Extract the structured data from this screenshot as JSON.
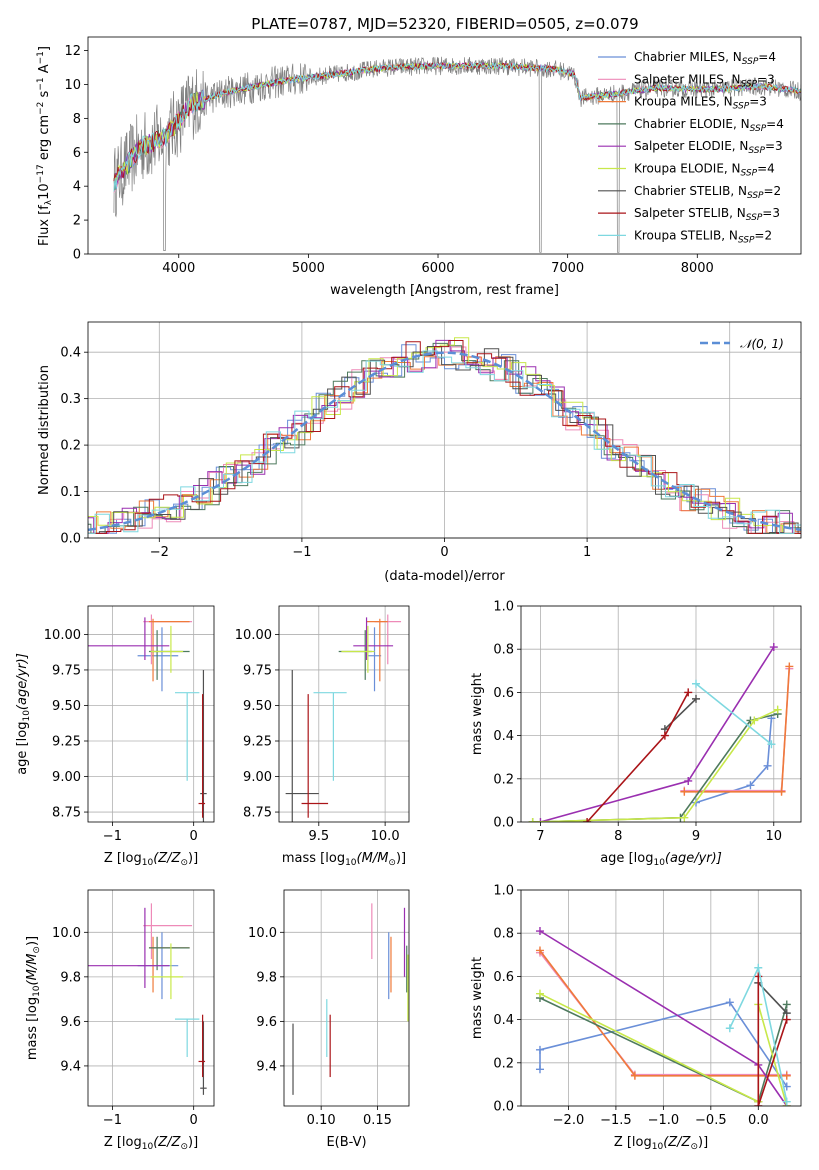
{
  "figure": {
    "title": "PLATE=0787, MJD=52320, FIBERID=0505, z=0.079"
  },
  "chart_data": [
    {
      "id": "spectrum",
      "type": "line",
      "title": "PLATE=0787, MJD=52320, FIBERID=0505, z=0.079",
      "xlabel": "wavelength [Angstrom, rest frame]",
      "ylabel_main": "Flux [f",
      "ylabel_sub": "λ",
      "ylabel_rest": "10",
      "ylabel_exp": "−17",
      "ylabel_tail": " erg cm",
      "ylabel_exp2": "−2",
      "ylabel_tail2": " s",
      "ylabel_exp3": "−1",
      "ylabel_tail3": " A",
      "ylabel_exp4": "−1",
      "ylabel_end": "]",
      "xlim": [
        3300,
        8800
      ],
      "ylim": [
        0,
        12.8
      ],
      "xticks": [
        4000,
        5000,
        6000,
        7000,
        8000
      ],
      "yticks": [
        0,
        2,
        4,
        6,
        8,
        10,
        12
      ],
      "grid": false,
      "legend_position": "top-right",
      "legend": [
        {
          "pre": "Chabrier MILES, N",
          "sub": "SSP",
          "post": "=4",
          "color": "#6a8fd8"
        },
        {
          "pre": "Salpeter MILES, N",
          "sub": "SSP",
          "post": "=3",
          "color": "#ee8ab8"
        },
        {
          "pre": "Kroupa MILES, N",
          "sub": "SSP",
          "post": "=3",
          "color": "#ef7a3a"
        },
        {
          "pre": "Chabrier ELODIE, N",
          "sub": "SSP",
          "post": "=4",
          "color": "#4e7a5e"
        },
        {
          "pre": "Salpeter ELODIE, N",
          "sub": "SSP",
          "post": "=3",
          "color": "#9a2fb0"
        },
        {
          "pre": "Kroupa ELODIE, N",
          "sub": "SSP",
          "post": "=4",
          "color": "#c8e84a"
        },
        {
          "pre": "Chabrier STELIB, N",
          "sub": "SSP",
          "post": "=2",
          "color": "#505050"
        },
        {
          "pre": "Salpeter STELIB, N",
          "sub": "SSP",
          "post": "=3",
          "color": "#aa1418"
        },
        {
          "pre": "Kroupa STELIB, N",
          "sub": "SSP",
          "post": "=2",
          "color": "#7ed8e0"
        }
      ],
      "data_color": "#808080",
      "continuum_knots": [
        [
          3500,
          4.2
        ],
        [
          3700,
          6.3
        ],
        [
          3900,
          6.9
        ],
        [
          4000,
          7.9
        ],
        [
          4100,
          8.9
        ],
        [
          4400,
          9.6
        ],
        [
          4800,
          10.2
        ],
        [
          5200,
          10.6
        ],
        [
          5600,
          11.0
        ],
        [
          6000,
          11.1
        ],
        [
          6500,
          11.1
        ],
        [
          6900,
          10.9
        ],
        [
          7050,
          10.6
        ],
        [
          7100,
          9.2
        ],
        [
          7400,
          9.5
        ],
        [
          7700,
          9.8
        ],
        [
          8100,
          9.7
        ],
        [
          8500,
          9.9
        ],
        [
          8800,
          9.6
        ]
      ]
    },
    {
      "id": "residuals",
      "type": "histogram",
      "xlabel": "(data-model)/error",
      "ylabel": "Normed distribution",
      "xlim": [
        -2.5,
        2.5
      ],
      "ylim": [
        0,
        0.465
      ],
      "xticks": [
        -2,
        -1,
        0,
        1,
        2
      ],
      "yticks": [
        0.0,
        0.1,
        0.2,
        0.3,
        0.4
      ],
      "grid": true,
      "legend_position": "top-right",
      "legend_label": "𝒩(0, 1)",
      "normal_color": "#5b8ed6",
      "bin_width": 0.1,
      "series": [
        {
          "color": "#6a8fd8",
          "offset": 0.0
        },
        {
          "color": "#ee8ab8",
          "offset": 0.05
        },
        {
          "color": "#ef7a3a",
          "offset": -0.04
        },
        {
          "color": "#4e7a5e",
          "offset": 0.02
        },
        {
          "color": "#9a2fb0",
          "offset": -0.06
        },
        {
          "color": "#c8e84a",
          "offset": 0.07
        },
        {
          "color": "#505050",
          "offset": -0.02
        },
        {
          "color": "#aa1418",
          "offset": 0.03
        },
        {
          "color": "#7ed8e0",
          "offset": -0.05
        }
      ]
    },
    {
      "id": "age_vs_Z",
      "type": "errorbar",
      "xlabel": "Z [log",
      "xlabel_sub": "10",
      "xlabel_rest": "(Z/Z",
      "xlabel_sub2": "⊙",
      "xlabel_end": ")]",
      "ylabel": "age  [log",
      "ylabel_sub": "10",
      "ylabel_rest": "(age/yr)]",
      "xlim": [
        -1.3,
        0.25
      ],
      "ylim": [
        8.68,
        10.2
      ],
      "xticks": [
        -1,
        0
      ],
      "yticks": [
        8.75,
        9.0,
        9.25,
        9.5,
        9.75,
        10.0
      ],
      "grid": true,
      "points": [
        {
          "color": "#6a8fd8",
          "x": -0.39,
          "y": 9.85,
          "xerr": [
            0.3,
            0.2
          ],
          "yerr": [
            0.25,
            0.2
          ]
        },
        {
          "color": "#ee8ab8",
          "x": -0.52,
          "y": 10.09,
          "xerr": [
            0.1,
            0.5
          ],
          "yerr": [
            0.3,
            0.05
          ]
        },
        {
          "color": "#ef7a3a",
          "x": -0.5,
          "y": 10.09,
          "xerr": [
            0.05,
            0.45
          ],
          "yerr": [
            0.42,
            0.02
          ]
        },
        {
          "color": "#4e7a5e",
          "x": -0.45,
          "y": 9.88,
          "xerr": [
            0.1,
            0.4
          ],
          "yerr": [
            0.2,
            0.15
          ]
        },
        {
          "color": "#9a2fb0",
          "x": -0.6,
          "y": 9.92,
          "xerr": [
            0.7,
            0.3
          ],
          "yerr": [
            0.1,
            0.2
          ]
        },
        {
          "color": "#c8e84a",
          "x": -0.28,
          "y": 9.88,
          "xerr": [
            0.25,
            0.15
          ],
          "yerr": [
            0.15,
            0.18
          ]
        },
        {
          "color": "#505050",
          "x": 0.12,
          "y": 8.88,
          "xerr": [
            0.04,
            0.04
          ],
          "yerr": [
            0.2,
            0.87
          ]
        },
        {
          "color": "#aa1418",
          "x": 0.11,
          "y": 8.81,
          "xerr": [
            0.05,
            0.03
          ],
          "yerr": [
            0.1,
            0.77
          ]
        },
        {
          "color": "#7ed8e0",
          "x": -0.08,
          "y": 9.59,
          "xerr": [
            0.15,
            0.15
          ],
          "yerr": [
            0.62,
            0.0
          ]
        }
      ]
    },
    {
      "id": "age_vs_mass",
      "type": "errorbar",
      "xlabel": "mass [log",
      "xlabel_sub": "10",
      "xlabel_rest": "(M/M",
      "xlabel_sub2": "⊙",
      "xlabel_end": ")]",
      "xlim": [
        9.2,
        10.18
      ],
      "ylim": [
        8.68,
        10.2
      ],
      "xticks": [
        9.5,
        10.0
      ],
      "yticks": [
        8.75,
        9.0,
        9.25,
        9.5,
        9.75,
        10.0
      ],
      "grid": true,
      "points": [
        {
          "color": "#6a8fd8",
          "x": 9.92,
          "y": 9.85,
          "xerr": [
            0.05,
            0.05
          ],
          "yerr": [
            0.25,
            0.2
          ]
        },
        {
          "color": "#ee8ab8",
          "x": 10.02,
          "y": 10.09,
          "xerr": [
            0.1,
            0.1
          ],
          "yerr": [
            0.3,
            0.05
          ]
        },
        {
          "color": "#ef7a3a",
          "x": 9.96,
          "y": 10.09,
          "xerr": [
            0.1,
            0.06
          ],
          "yerr": [
            0.42,
            0.02
          ]
        },
        {
          "color": "#4e7a5e",
          "x": 9.85,
          "y": 9.88,
          "xerr": [
            0.2,
            0.05
          ],
          "yerr": [
            0.2,
            0.15
          ]
        },
        {
          "color": "#9a2fb0",
          "x": 9.86,
          "y": 9.92,
          "xerr": [
            0.1,
            0.2
          ],
          "yerr": [
            0.1,
            0.2
          ]
        },
        {
          "color": "#c8e84a",
          "x": 9.87,
          "y": 9.88,
          "xerr": [
            0.2,
            0.05
          ],
          "yerr": [
            0.15,
            0.18
          ]
        },
        {
          "color": "#505050",
          "x": 9.3,
          "y": 8.88,
          "xerr": [
            0.05,
            0.2
          ],
          "yerr": [
            0.2,
            0.87
          ]
        },
        {
          "color": "#aa1418",
          "x": 9.42,
          "y": 8.81,
          "xerr": [
            0.05,
            0.15
          ],
          "yerr": [
            0.1,
            0.77
          ]
        },
        {
          "color": "#7ed8e0",
          "x": 9.61,
          "y": 9.59,
          "xerr": [
            0.15,
            0.1
          ],
          "yerr": [
            0.62,
            0.0
          ]
        }
      ]
    },
    {
      "id": "weight_vs_age",
      "type": "line",
      "xlabel": "age  [log",
      "xlabel_sub": "10",
      "xlabel_rest": "(age/yr)]",
      "ylabel": "mass weight",
      "xlim": [
        6.75,
        10.35
      ],
      "ylim": [
        0,
        1.0
      ],
      "xticks": [
        7,
        8,
        9,
        10
      ],
      "yticks": [
        0.0,
        0.2,
        0.4,
        0.6,
        0.8,
        1.0
      ],
      "grid": true,
      "series": [
        {
          "color": "#6a8fd8",
          "x": [
            9.0,
            9.7,
            9.92,
            9.97
          ],
          "y": [
            0.09,
            0.17,
            0.26,
            0.48
          ]
        },
        {
          "color": "#ee8ab8",
          "x": [
            8.85,
            10.1,
            10.2
          ],
          "y": [
            0.145,
            0.145,
            0.71
          ]
        },
        {
          "color": "#ef7a3a",
          "x": [
            8.85,
            10.1,
            10.2
          ],
          "y": [
            0.14,
            0.14,
            0.72
          ]
        },
        {
          "color": "#4e7a5e",
          "x": [
            6.9,
            8.8,
            9.7,
            10.05
          ],
          "y": [
            0.0,
            0.02,
            0.47,
            0.5
          ]
        },
        {
          "color": "#9a2fb0",
          "x": [
            7.0,
            8.9,
            10.0
          ],
          "y": [
            0.0,
            0.19,
            0.81
          ]
        },
        {
          "color": "#c8e84a",
          "x": [
            6.9,
            8.85,
            9.75,
            10.05
          ],
          "y": [
            0.0,
            0.02,
            0.47,
            0.52
          ]
        },
        {
          "color": "#505050",
          "x": [
            8.6,
            9.0
          ],
          "y": [
            0.43,
            0.57
          ]
        },
        {
          "color": "#aa1418",
          "x": [
            7.6,
            8.6,
            8.9
          ],
          "y": [
            0.0,
            0.4,
            0.6
          ]
        },
        {
          "color": "#7ed8e0",
          "x": [
            9.0,
            9.97
          ],
          "y": [
            0.64,
            0.36
          ]
        }
      ]
    },
    {
      "id": "mass_vs_Z",
      "type": "errorbar",
      "xlabel": "Z [log",
      "xlabel_sub": "10",
      "xlabel_rest": "(Z/Z",
      "xlabel_sub2": "⊙",
      "xlabel_end": ")]",
      "ylabel": "mass [log",
      "ylabel_sub": "10",
      "ylabel_rest": "(M/M",
      "ylabel_sub2": "⊙",
      "ylabel_end": ")]",
      "xlim": [
        -1.3,
        0.25
      ],
      "ylim": [
        9.22,
        10.19
      ],
      "xticks": [
        -1,
        0
      ],
      "yticks": [
        9.4,
        9.6,
        9.8,
        10.0
      ],
      "grid": true,
      "points": [
        {
          "color": "#6a8fd8",
          "x": -0.39,
          "y": 9.85,
          "xerr": [
            0.3,
            0.2
          ],
          "yerr": [
            0.15,
            0.15
          ]
        },
        {
          "color": "#ee8ab8",
          "x": -0.52,
          "y": 10.03,
          "xerr": [
            0.1,
            0.5
          ],
          "yerr": [
            0.15,
            0.1
          ]
        },
        {
          "color": "#ef7a3a",
          "x": -0.5,
          "y": 9.93,
          "xerr": [
            0.05,
            0.45
          ],
          "yerr": [
            0.2,
            0.05
          ]
        },
        {
          "color": "#4e7a5e",
          "x": -0.45,
          "y": 9.93,
          "xerr": [
            0.1,
            0.4
          ],
          "yerr": [
            0.1,
            0.05
          ]
        },
        {
          "color": "#9a2fb0",
          "x": -0.6,
          "y": 9.85,
          "xerr": [
            0.7,
            0.3
          ],
          "yerr": [
            0.1,
            0.26
          ]
        },
        {
          "color": "#c8e84a",
          "x": -0.28,
          "y": 9.8,
          "xerr": [
            0.25,
            0.15
          ],
          "yerr": [
            0.1,
            0.15
          ]
        },
        {
          "color": "#505050",
          "x": 0.12,
          "y": 9.3,
          "xerr": [
            0.04,
            0.04
          ],
          "yerr": [
            0.03,
            0.3
          ]
        },
        {
          "color": "#aa1418",
          "x": 0.11,
          "y": 9.42,
          "xerr": [
            0.05,
            0.03
          ],
          "yerr": [
            0.07,
            0.21
          ]
        },
        {
          "color": "#7ed8e0",
          "x": -0.08,
          "y": 9.61,
          "xerr": [
            0.15,
            0.15
          ],
          "yerr": [
            0.17,
            0.0
          ]
        }
      ]
    },
    {
      "id": "mass_vs_ebv",
      "type": "errorbar",
      "xlabel": "E(B-V)",
      "xlim": [
        0.067,
        0.178
      ],
      "ylim": [
        9.22,
        10.19
      ],
      "xticks": [
        0.1,
        0.15
      ],
      "yticks": [
        9.4,
        9.6,
        9.8,
        10.0
      ],
      "grid": true,
      "points": [
        {
          "color": "#6a8fd8",
          "x": 0.16,
          "y": 9.85,
          "xerr": [
            0,
            0
          ],
          "yerr": [
            0.15,
            0.15
          ]
        },
        {
          "color": "#ee8ab8",
          "x": 0.145,
          "y": 10.03,
          "xerr": [
            0,
            0
          ],
          "yerr": [
            0.15,
            0.1
          ]
        },
        {
          "color": "#ef7a3a",
          "x": 0.162,
          "y": 9.93,
          "xerr": [
            0,
            0
          ],
          "yerr": [
            0.2,
            0.05
          ]
        },
        {
          "color": "#4e7a5e",
          "x": 0.176,
          "y": 9.83,
          "xerr": [
            0,
            0
          ],
          "yerr": [
            0.1,
            0.11
          ]
        },
        {
          "color": "#9a2fb0",
          "x": 0.174,
          "y": 9.9,
          "xerr": [
            0,
            0
          ],
          "yerr": [
            0.1,
            0.21
          ]
        },
        {
          "color": "#c8e84a",
          "x": 0.177,
          "y": 9.8,
          "xerr": [
            0,
            0
          ],
          "yerr": [
            0.2,
            0.1
          ]
        },
        {
          "color": "#505050",
          "x": 0.075,
          "y": 9.43,
          "xerr": [
            0,
            0
          ],
          "yerr": [
            0.16,
            0.16
          ]
        },
        {
          "color": "#aa1418",
          "x": 0.108,
          "y": 9.49,
          "xerr": [
            0,
            0
          ],
          "yerr": [
            0.14,
            0.14
          ]
        },
        {
          "color": "#7ed8e0",
          "x": 0.105,
          "y": 9.54,
          "xerr": [
            0,
            0
          ],
          "yerr": [
            0.1,
            0.16
          ]
        }
      ]
    },
    {
      "id": "weight_vs_Z",
      "type": "line",
      "xlabel": "Z [log",
      "xlabel_sub": "10",
      "xlabel_rest": "(Z/Z",
      "xlabel_sub2": "⊙",
      "xlabel_end": ")]",
      "ylabel": "mass weight",
      "xlim": [
        -2.5,
        0.45
      ],
      "ylim": [
        0,
        1.0
      ],
      "xticks": [
        -2.0,
        -1.5,
        -1.0,
        -0.5,
        0.0
      ],
      "yticks": [
        0.0,
        0.2,
        0.4,
        0.6,
        0.8,
        1.0
      ],
      "grid": true,
      "series": [
        {
          "color": "#6a8fd8",
          "x": [
            -2.3,
            -2.3,
            -0.3,
            0.3
          ],
          "y": [
            0.17,
            0.26,
            0.48,
            0.09
          ]
        },
        {
          "color": "#ee8ab8",
          "x": [
            -2.3,
            -1.3,
            0.3
          ],
          "y": [
            0.71,
            0.145,
            0.145
          ]
        },
        {
          "color": "#ef7a3a",
          "x": [
            -2.3,
            -1.3,
            0.3
          ],
          "y": [
            0.72,
            0.14,
            0.14
          ]
        },
        {
          "color": "#4e7a5e",
          "x": [
            -2.3,
            0.0,
            0.3
          ],
          "y": [
            0.5,
            0.02,
            0.47
          ]
        },
        {
          "color": "#9a2fb0",
          "x": [
            -2.3,
            0.0,
            0.3
          ],
          "y": [
            0.81,
            0.19,
            0.0
          ]
        },
        {
          "color": "#c8e84a",
          "x": [
            -2.3,
            0.0,
            0.0,
            0.3
          ],
          "y": [
            0.52,
            0.02,
            0.47,
            0.0
          ]
        },
        {
          "color": "#505050",
          "x": [
            0.0,
            0.3
          ],
          "y": [
            0.57,
            0.43
          ]
        },
        {
          "color": "#aa1418",
          "x": [
            0.0,
            0.0,
            0.3
          ],
          "y": [
            0.6,
            0.0,
            0.4
          ]
        },
        {
          "color": "#7ed8e0",
          "x": [
            -0.3,
            0.0,
            0.3
          ],
          "y": [
            0.36,
            0.64,
            0.02
          ]
        }
      ]
    }
  ]
}
